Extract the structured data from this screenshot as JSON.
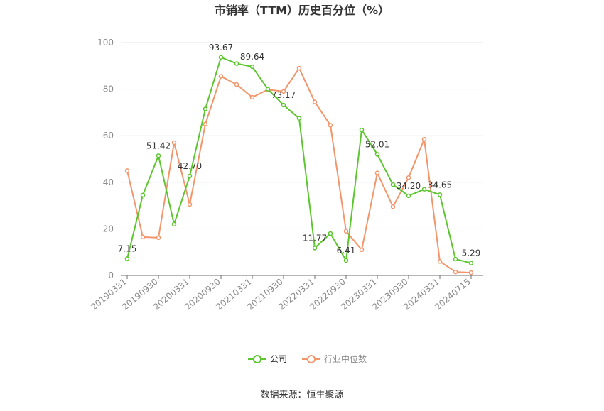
{
  "chart_data": {
    "type": "line",
    "title": "市销率（TTM）历史百分位（%）",
    "source": "数据来源：恒生聚源",
    "ylim": [
      0,
      100
    ],
    "yticks": [
      0,
      20,
      40,
      60,
      80,
      100
    ],
    "grid": true,
    "legend_position": "bottom",
    "x": [
      "20190331",
      "20190630",
      "20190930",
      "20191231",
      "20200331",
      "20200630",
      "20200930",
      "20201231",
      "20210331",
      "20210630",
      "20210930",
      "20211231",
      "20220331",
      "20220630",
      "20220930",
      "20221231",
      "20230331",
      "20230630",
      "20230930",
      "20231231",
      "20240331",
      "20240630",
      "20240715"
    ],
    "x_tick_labels": [
      "20190331",
      "20190930",
      "20200331",
      "20200930",
      "20210331",
      "20210930",
      "20220331",
      "20220930",
      "20230331",
      "20230930",
      "20240331",
      "20240715"
    ],
    "series": [
      {
        "name": "公司",
        "color": "#5cc62e",
        "values": [
          7.15,
          34.5,
          51.42,
          22.0,
          42.7,
          71.5,
          93.67,
          91.0,
          89.64,
          80.0,
          73.17,
          67.5,
          11.77,
          18.0,
          6.41,
          62.5,
          52.01,
          39.0,
          34.2,
          37.0,
          34.65,
          7.0,
          5.29
        ],
        "labels": {
          "0": "7.15",
          "2": "51.42",
          "4": "42.70",
          "6": "93.67",
          "8": "89.64",
          "10": "73.17",
          "12": "11.77",
          "14": "6.41",
          "16": "52.01",
          "18": "34.20",
          "20": "34.65",
          "22": "5.29"
        }
      },
      {
        "name": "行业中位数",
        "color": "#f2956b",
        "values": [
          45.0,
          16.5,
          16.2,
          57.0,
          30.5,
          65.0,
          85.5,
          82.0,
          76.5,
          79.8,
          79.0,
          89.0,
          74.5,
          64.5,
          19.0,
          11.0,
          44.0,
          29.5,
          42.0,
          58.5,
          6.0,
          1.5,
          1.2
        ]
      }
    ]
  }
}
